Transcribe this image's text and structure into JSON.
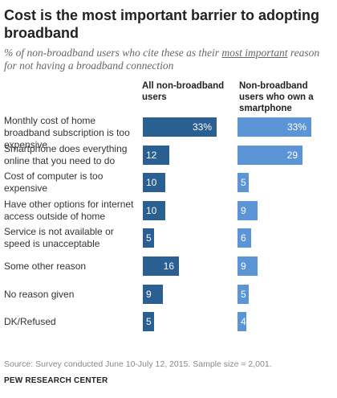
{
  "title": "Cost is the most important barrier to adopting broadband",
  "subtitle": {
    "before": "% of non-broadband users who cite these as their ",
    "emphasis": "most important",
    "after": " reason for not having a broadband connection"
  },
  "chart_data": {
    "type": "bar",
    "orientation": "horizontal",
    "categories": [
      "Monthly cost of home broadband subscription is too expensive",
      "Smartphone does everything online that you need to do",
      "Cost of computer is too expensive",
      "Have other options for internet access outside of home",
      "Service is not available or speed is unacceptable",
      "Some other reason",
      "No reason given",
      "DK/Refused"
    ],
    "series": [
      {
        "name": "All non-broadband users",
        "values": [
          33,
          12,
          10,
          10,
          5,
          16,
          9,
          5
        ],
        "color": "#2a5f91"
      },
      {
        "name": "Non-broadband users who own a smartphone",
        "values": [
          33,
          29,
          5,
          9,
          6,
          9,
          5,
          4
        ],
        "color": "#5c95d6"
      }
    ],
    "value_labels": [
      [
        "33%",
        "12",
        "10",
        "10",
        "5",
        "16",
        "9",
        "5"
      ],
      [
        "33%",
        "29",
        "5",
        "9",
        "6",
        "9",
        "5",
        "4"
      ]
    ],
    "xlim": [
      0,
      33
    ],
    "grid": false,
    "legend": "column headers"
  },
  "source": "Source: Survey conducted June 10-July 12, 2015. Sample size = 2,001.",
  "brand": "PEW RESEARCH CENTER"
}
